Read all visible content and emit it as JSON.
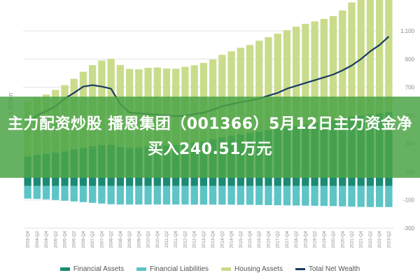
{
  "banner": {
    "headline": "主力配资炒股 播恩集团（001366）5月12日主力资金净买入240.51万元"
  },
  "colors": {
    "financial_assets": "#1c8a74",
    "financial_liabilities": "#5ec4c6",
    "housing_assets": "#c9dc8c",
    "total_net_wealth": "#1a3c5e",
    "grid": "#e2e2e2",
    "banner": "#4ca446"
  },
  "chart_data": {
    "type": "bar",
    "title": "",
    "ylabel": "£ Billion",
    "xlabel": "",
    "ylim": [
      -300,
      1200
    ],
    "y_ticks": [
      -300,
      -100,
      100,
      300,
      500,
      700,
      900,
      1100
    ],
    "y_tick_labels": [
      "-300",
      "-100",
      "100",
      "300",
      "500",
      "700",
      "900",
      "1,100"
    ],
    "grid": true,
    "legend_position": "bottom",
    "categories": [
      "2003-Q4",
      "2004-Q2",
      "2004-Q4",
      "2005-Q2",
      "2005-Q4",
      "2006-Q2",
      "2006-Q4",
      "2007-Q2",
      "2007-Q4",
      "2008-Q2",
      "2008-Q4",
      "2009-Q2",
      "2009-Q4",
      "2010-Q2",
      "2010-Q4",
      "2011-Q2",
      "2011-Q4",
      "2012-Q2",
      "2012-Q4",
      "2013-Q2",
      "2013-Q4",
      "2014-Q2",
      "2014-Q4",
      "2015-Q2",
      "2015-Q4",
      "2016-Q2",
      "2016-Q4",
      "2017-Q2",
      "2017-Q4",
      "2018-Q2",
      "2018-Q4",
      "2019-Q2",
      "2019-Q4",
      "2020-Q2",
      "2020-Q4",
      "2021-Q2",
      "2021-Q4",
      "2022-Q2",
      "2022-Q4",
      "2023-Q2"
    ],
    "series": [
      {
        "name": "Financial Assets",
        "kind": "bar",
        "stack": "positive",
        "values": [
          210,
          220,
          228,
          236,
          245,
          260,
          270,
          282,
          290,
          292,
          278,
          270,
          272,
          278,
          285,
          288,
          292,
          300,
          308,
          318,
          332,
          345,
          355,
          365,
          375,
          385,
          395,
          405,
          415,
          425,
          435,
          448,
          455,
          465,
          480,
          492,
          500,
          508,
          515,
          525
        ]
      },
      {
        "name": "Housing Assets",
        "kind": "bar",
        "stack": "positive",
        "values": [
          390,
          405,
          420,
          445,
          470,
          500,
          540,
          575,
          600,
          610,
          580,
          560,
          555,
          560,
          555,
          545,
          540,
          545,
          548,
          555,
          565,
          585,
          600,
          615,
          625,
          645,
          660,
          675,
          690,
          705,
          715,
          720,
          730,
          740,
          765,
          810,
          850,
          880,
          880,
          870
        ]
      },
      {
        "name": "Financial Liabilities",
        "kind": "bar",
        "stack": "negative",
        "values": [
          -90,
          -92,
          -95,
          -100,
          -105,
          -110,
          -115,
          -120,
          -125,
          -130,
          -132,
          -132,
          -132,
          -132,
          -132,
          -132,
          -132,
          -132,
          -133,
          -133,
          -133,
          -133,
          -133,
          -134,
          -134,
          -135,
          -136,
          -137,
          -138,
          -139,
          -140,
          -141,
          -142,
          -143,
          -145,
          -147,
          -149,
          -150,
          -150,
          -150
        ]
      },
      {
        "name": "Total Net Wealth",
        "kind": "line",
        "values": [
          450,
          500,
          530,
          565,
          620,
          660,
          705,
          715,
          705,
          690,
          580,
          520,
          515,
          510,
          505,
          500,
          495,
          498,
          510,
          520,
          540,
          565,
          580,
          595,
          605,
          620,
          640,
          660,
          690,
          710,
          730,
          750,
          770,
          790,
          820,
          855,
          900,
          955,
          1000,
          1060
        ]
      }
    ]
  }
}
